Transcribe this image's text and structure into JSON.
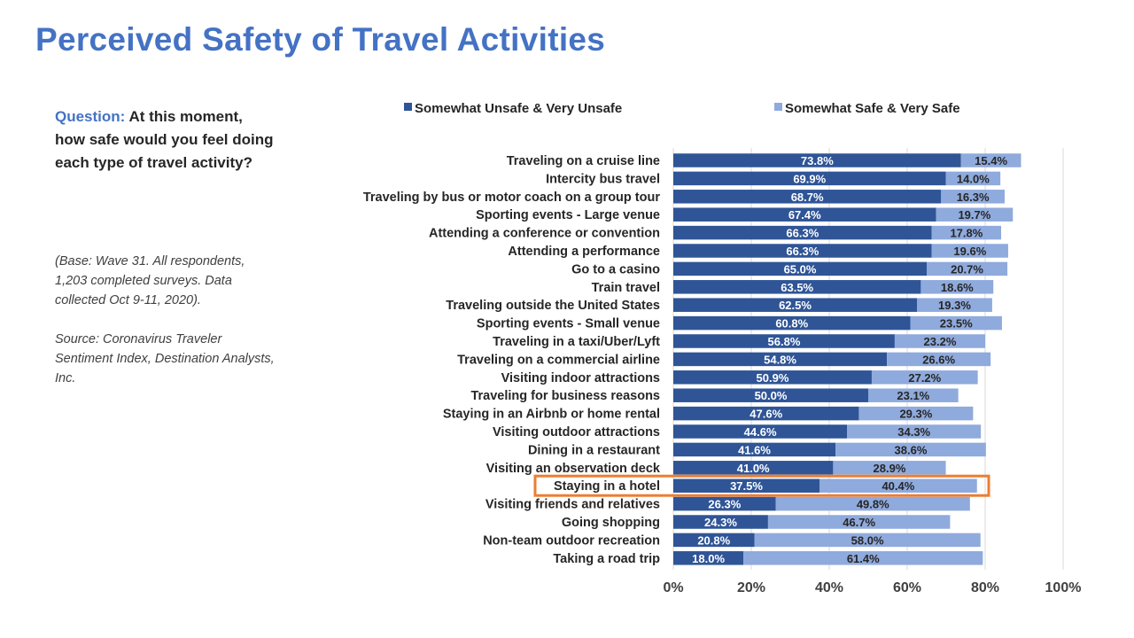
{
  "title": "Perceived Safety of Travel Activities",
  "question": {
    "label": "Question:",
    "text": "At this moment, how safe would you feel doing each type of travel activity?"
  },
  "base_note": "(Base: Wave 31. All respondents, 1,203 completed surveys. Data collected Oct 9-11, 2020).",
  "source_note": "Source: Coronavirus Traveler Sentiment Index, Destination Analysts, Inc.",
  "colors": {
    "unsafe": "#2F5597",
    "safe": "#8FAADC",
    "highlight": "#ED7D31",
    "title": "#4472C4"
  },
  "chart_data": {
    "type": "bar",
    "orientation": "horizontal",
    "stacked": true,
    "categories": [
      "Traveling on a cruise line",
      "Intercity bus travel",
      "Traveling by  bus or motor coach on a group tour",
      "Sporting events - Large venue",
      "Attending a conference or convention",
      "Attending a performance",
      "Go to a casino",
      "Train travel",
      "Traveling outside the United States",
      "Sporting events - Small venue",
      "Traveling in a taxi/Uber/Lyft",
      "Traveling on a commercial airline",
      "Visiting indoor attractions",
      "Traveling for business reasons",
      "Staying in an Airbnb or home rental",
      "Visiting outdoor attractions",
      "Dining in a restaurant",
      "Visiting an observation deck",
      "Staying in a hotel",
      "Visiting friends and relatives",
      "Going shopping",
      "Non-team outdoor recreation",
      "Taking a road trip"
    ],
    "series": [
      {
        "name": "Somewhat Unsafe & Very Unsafe",
        "values": [
          73.8,
          69.9,
          68.7,
          67.4,
          66.3,
          66.3,
          65.0,
          63.5,
          62.5,
          60.8,
          56.8,
          54.8,
          50.9,
          50.0,
          47.6,
          44.6,
          41.6,
          41.0,
          37.5,
          26.3,
          24.3,
          20.8,
          18.0
        ]
      },
      {
        "name": "Somewhat Safe & Very Safe",
        "values": [
          15.4,
          14.0,
          16.3,
          19.7,
          17.8,
          19.6,
          20.7,
          18.6,
          19.3,
          23.5,
          23.2,
          26.6,
          27.2,
          23.1,
          29.3,
          34.3,
          38.6,
          28.9,
          40.4,
          49.8,
          46.7,
          58.0,
          61.4
        ]
      }
    ],
    "x_ticks": [
      "0%",
      "20%",
      "40%",
      "60%",
      "80%",
      "100%"
    ],
    "xlim": [
      0,
      100
    ],
    "value_format": "percent_1dp",
    "legend": "top",
    "highlighted_category": "Staying in a hotel"
  }
}
